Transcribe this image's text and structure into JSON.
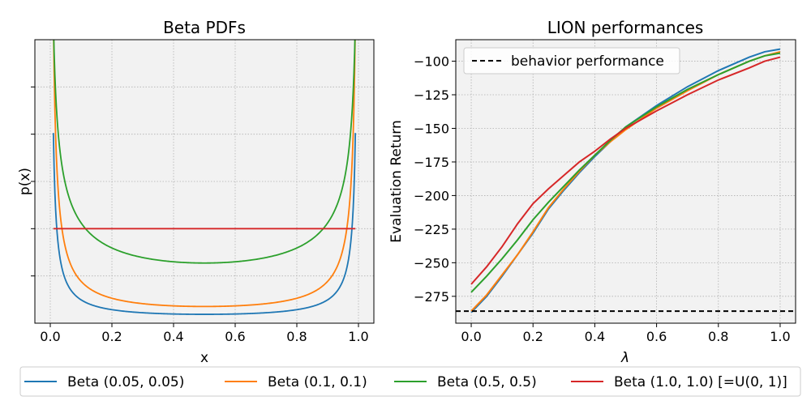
{
  "chart_data": [
    {
      "type": "line",
      "title": "Beta PDFs",
      "xlabel": "x",
      "ylabel": "p(x)",
      "xlim": [
        -0.05,
        1.05
      ],
      "ylim": [
        0.0,
        3.0
      ],
      "x_ticks": [
        "0.0",
        "0.2",
        "0.4",
        "0.6",
        "0.8",
        "1.0"
      ],
      "grid": true,
      "series": [
        {
          "name": "Beta (0.05, 0.05)",
          "color": "#1f77b4",
          "alpha": 0.05,
          "beta": 0.05
        },
        {
          "name": "Beta (0.1, 0.1)",
          "color": "#ff7f0e",
          "alpha": 0.1,
          "beta": 0.1
        },
        {
          "name": "Beta (0.5, 0.5)",
          "color": "#2ca02c",
          "alpha": 0.5,
          "beta": 0.5
        },
        {
          "name": "Beta (1.0, 1.0) [=U(0, 1)]",
          "color": "#d62728",
          "alpha": 1.0,
          "beta": 1.0
        }
      ]
    },
    {
      "type": "line",
      "title": "LION performances",
      "xlabel": "λ",
      "ylabel": "Evaluation Return",
      "xlim": [
        -0.05,
        1.05
      ],
      "ylim": [
        -295,
        -84
      ],
      "x_ticks": [
        "0.0",
        "0.2",
        "0.4",
        "0.6",
        "0.8",
        "1.0"
      ],
      "y_ticks": [
        "−100",
        "−125",
        "−150",
        "−175",
        "−200",
        "−225",
        "−250",
        "−275"
      ],
      "grid": true,
      "legend": "upper-left",
      "reference_line": {
        "label": "behavior performance",
        "y": -286,
        "style": "dashed",
        "color": "#000000"
      },
      "x": [
        0.0,
        0.05,
        0.1,
        0.15,
        0.2,
        0.25,
        0.3,
        0.35,
        0.4,
        0.45,
        0.5,
        0.6,
        0.7,
        0.8,
        0.9,
        0.95,
        1.0
      ],
      "series": [
        {
          "name": "Beta (0.05, 0.05)",
          "color": "#1f77b4",
          "values": [
            -287,
            -275,
            -260,
            -244,
            -228,
            -210,
            -196,
            -183,
            -171,
            -160,
            -149,
            -133,
            -119,
            -107,
            -97,
            -93,
            -91
          ]
        },
        {
          "name": "Beta (0.1, 0.1)",
          "color": "#ff7f0e",
          "values": [
            -286,
            -274,
            -259,
            -244,
            -227,
            -209,
            -195,
            -182,
            -170,
            -160,
            -151,
            -135,
            -122,
            -110,
            -100,
            -96,
            -93
          ]
        },
        {
          "name": "Beta (0.5, 0.5)",
          "color": "#2ca02c",
          "values": [
            -272,
            -260,
            -247,
            -233,
            -218,
            -205,
            -193,
            -181,
            -170,
            -159,
            -149,
            -134,
            -121,
            -110,
            -100,
            -96,
            -94
          ]
        },
        {
          "name": "Beta (1.0, 1.0) [=U(0, 1)]",
          "color": "#d62728",
          "values": [
            -266,
            -253,
            -238,
            -221,
            -206,
            -195,
            -185,
            -175,
            -167,
            -158,
            -150,
            -137,
            -125,
            -114,
            -105,
            -100,
            -97
          ]
        }
      ]
    }
  ],
  "legend": {
    "entries": [
      {
        "label": "Beta (0.05, 0.05)",
        "color": "#1f77b4"
      },
      {
        "label": "Beta (0.1, 0.1)",
        "color": "#ff7f0e"
      },
      {
        "label": "Beta (0.5, 0.5)",
        "color": "#2ca02c"
      },
      {
        "label": "Beta (1.0, 1.0) [=U(0, 1)]",
        "color": "#d62728"
      }
    ]
  }
}
